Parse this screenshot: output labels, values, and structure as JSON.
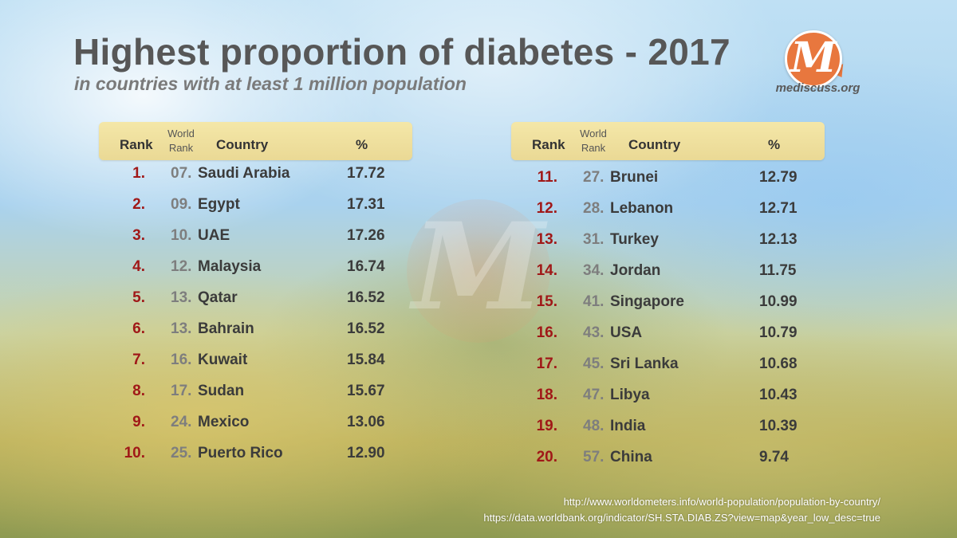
{
  "title": "Highest proportion of diabetes - 2017",
  "subtitle": "in countries with at least 1 million population",
  "logo": {
    "glyph": "M",
    "text": "mediscuss.org"
  },
  "watermark": "M",
  "headers": {
    "rank": "Rank",
    "world_line1": "World",
    "world_line2": "Rank",
    "country": "Country",
    "percent": "%"
  },
  "colors": {
    "rank_red": "#a01818",
    "header_bg": "#f0e3a2",
    "logo_orange": "#e8773e"
  },
  "chart_data": {
    "type": "table",
    "title": "Highest proportion of diabetes - 2017",
    "subtitle": "in countries with at least 1 million population",
    "columns": [
      "Rank",
      "World Rank",
      "Country",
      "%"
    ],
    "rows_left": [
      {
        "rank": "1.",
        "world": "07.",
        "country": "Saudi Arabia",
        "pct": "17.72"
      },
      {
        "rank": "2.",
        "world": "09.",
        "country": "Egypt",
        "pct": "17.31"
      },
      {
        "rank": "3.",
        "world": "10.",
        "country": "UAE",
        "pct": "17.26"
      },
      {
        "rank": "4.",
        "world": "12.",
        "country": "Malaysia",
        "pct": "16.74"
      },
      {
        "rank": "5.",
        "world": "13.",
        "country": "Qatar",
        "pct": "16.52"
      },
      {
        "rank": "6.",
        "world": "13.",
        "country": "Bahrain",
        "pct": "16.52"
      },
      {
        "rank": "7.",
        "world": "16.",
        "country": "Kuwait",
        "pct": "15.84"
      },
      {
        "rank": "8.",
        "world": "17.",
        "country": "Sudan",
        "pct": "15.67"
      },
      {
        "rank": "9.",
        "world": "24.",
        "country": "Mexico",
        "pct": "13.06"
      },
      {
        "rank": "10.",
        "world": "25.",
        "country": "Puerto Rico",
        "pct": "12.90"
      }
    ],
    "rows_right": [
      {
        "rank": "11.",
        "world": "27.",
        "country": "Brunei",
        "pct": "12.79"
      },
      {
        "rank": "12.",
        "world": "28.",
        "country": "Lebanon",
        "pct": "12.71"
      },
      {
        "rank": "13.",
        "world": "31.",
        "country": "Turkey",
        "pct": "12.13"
      },
      {
        "rank": "14.",
        "world": "34.",
        "country": "Jordan",
        "pct": "11.75"
      },
      {
        "rank": "15.",
        "world": "41.",
        "country": "Singapore",
        "pct": "10.99"
      },
      {
        "rank": "16.",
        "world": "43.",
        "country": "USA",
        "pct": "10.79"
      },
      {
        "rank": "17.",
        "world": "45.",
        "country": "Sri Lanka",
        "pct": "10.68"
      },
      {
        "rank": "18.",
        "world": "47.",
        "country": "Libya",
        "pct": "10.43"
      },
      {
        "rank": "19.",
        "world": "48.",
        "country": "India",
        "pct": "10.39"
      },
      {
        "rank": "20.",
        "world": "57.",
        "country": "China",
        "pct": "9.74"
      }
    ]
  },
  "sources": [
    "http://www.worldometers.info/world-population/population-by-country/",
    "https://data.worldbank.org/indicator/SH.STA.DIAB.ZS?view=map&year_low_desc=true"
  ]
}
